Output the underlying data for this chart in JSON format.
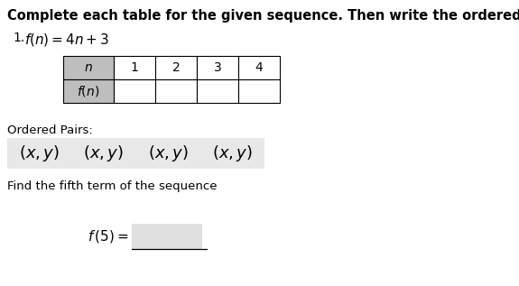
{
  "title": "Complete each table for the given sequence. Then write the ordered pairs.",
  "problem_number": "1.",
  "function_expr": "$f(n) = 4n + 3$",
  "table_header": [
    "n",
    "1",
    "2",
    "3",
    "4"
  ],
  "table_row_label": "$f(n)$",
  "ordered_pairs_label": "Ordered Pairs:",
  "ordered_pairs": [
    "$(x, y)$",
    "$(x, y)$",
    "$(x, y)$",
    "$(x, y)$"
  ],
  "fifth_term_label": "Find the fifth term of the sequence",
  "f5_label": "$f\\,(5) =$",
  "bg_color": "#ffffff",
  "table_header_bg": "#bebebe",
  "table_cell_bg": "#ffffff",
  "ordered_pairs_bg": "#e8e8e8",
  "answer_box_bg": "#e0e0e0"
}
